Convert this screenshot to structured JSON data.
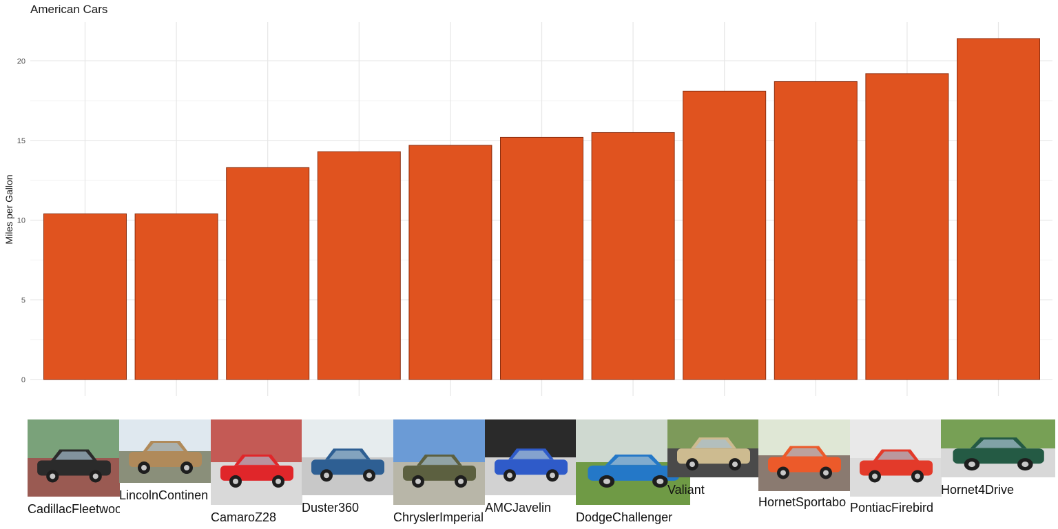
{
  "chart_data": {
    "type": "bar",
    "title": "American Cars",
    "xlabel": "",
    "ylabel": "Miles per Gallon",
    "ylim": [
      0,
      21.4
    ],
    "yticks": [
      0,
      5,
      10,
      15,
      20
    ],
    "grid": true,
    "categories": [
      "CadillacFleetwood",
      "LincolnContinental",
      "CamaroZ28",
      "Duster360",
      "ChryslerImperial",
      "AMCJavelin",
      "DodgeChallenger",
      "Valiant",
      "HornetSportabout",
      "PontiacFirebird",
      "Hornet4Drive"
    ],
    "values": [
      10.4,
      10.4,
      13.3,
      14.3,
      14.7,
      15.2,
      15.5,
      18.1,
      18.7,
      19.2,
      21.4
    ],
    "bar_color": "#E0531F",
    "bar_border": "#8B2E0F"
  },
  "thumbnails": [
    {
      "label": "CadillacFleetwood",
      "car_color": "#2b2b2b",
      "sky": "#7aa27a",
      "ground": "#9a5a52"
    },
    {
      "label": "LincolnContinen",
      "car_color": "#b08a5a",
      "sky": "#dfe8ef",
      "ground": "#8a8f7a"
    },
    {
      "label": "CamaroZ28",
      "car_color": "#e0262a",
      "sky": "#c45a55",
      "ground": "#d9d9d9"
    },
    {
      "label": "Duster360",
      "car_color": "#2e5f93",
      "sky": "#e6ecee",
      "ground": "#c8c8c8"
    },
    {
      "label": "ChryslerImperial",
      "car_color": "#5c6040",
      "sky": "#6b9bd6",
      "ground": "#b8b6a8"
    },
    {
      "label": "AMCJavelin",
      "car_color": "#2f5bc9",
      "sky": "#2a2a2a",
      "ground": "#d2d2d2"
    },
    {
      "label": "DodgeChallenger",
      "car_color": "#2478c8",
      "sky": "#cfd9d0",
      "ground": "#6f9a45"
    },
    {
      "label": "Valiant",
      "car_color": "#cdbb90",
      "sky": "#7d9a5a",
      "ground": "#4a4a4a"
    },
    {
      "label": "HornetSportabo",
      "car_color": "#ec5a2a",
      "sky": "#dfe7d5",
      "ground": "#8a7a70"
    },
    {
      "label": "PontiacFirebird",
      "car_color": "#e33a2a",
      "sky": "#e9e9e9",
      "ground": "#dcdcdc"
    },
    {
      "label": "Hornet4Drive",
      "car_color": "#245a44",
      "sky": "#77a055",
      "ground": "#d8d8d8"
    }
  ]
}
